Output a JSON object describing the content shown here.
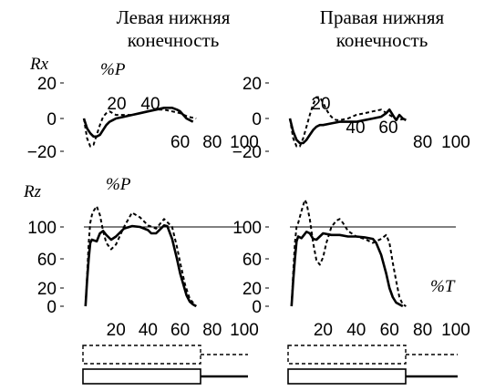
{
  "columns": [
    {
      "title_line1": "Левая нижняя",
      "title_line2": "конечность"
    },
    {
      "title_line1": "Правая нижняя",
      "title_line2": "конечность"
    }
  ],
  "row_labels": {
    "rx": "Rx",
    "rz": "Rz"
  },
  "axis_labels": {
    "percent_p": "%P",
    "percent_t": "%T"
  },
  "colors": {
    "ink": "#000000",
    "background": "#ffffff"
  },
  "chart_data": [
    {
      "id": "rx-left",
      "type": "line",
      "ylabel": "%P",
      "xlim": [
        0,
        100
      ],
      "ylim": [
        -20,
        20
      ],
      "xticks": [
        20,
        40,
        60,
        80,
        100
      ],
      "yticks": [
        -20,
        0,
        20
      ],
      "series": [
        {
          "style": "solid",
          "x": [
            0,
            2,
            4,
            6,
            8,
            10,
            12,
            14,
            16,
            18,
            20,
            25,
            30,
            35,
            40,
            45,
            50,
            55,
            58,
            60,
            62,
            64,
            66,
            68
          ],
          "y": [
            0,
            -6,
            -9,
            -11,
            -11,
            -10,
            -7,
            -4,
            -2,
            -1,
            0,
            1,
            2,
            3,
            4,
            5,
            6,
            6,
            5,
            4,
            2,
            0,
            -1,
            -2
          ]
        },
        {
          "style": "dashed",
          "x": [
            0,
            2,
            4,
            6,
            8,
            10,
            12,
            14,
            16,
            18,
            20,
            25,
            30,
            35,
            40,
            45,
            50,
            55,
            60,
            65,
            70
          ],
          "y": [
            0,
            -12,
            -17,
            -16,
            -10,
            -4,
            1,
            3,
            4,
            3,
            2,
            2,
            2,
            3,
            4,
            5,
            5,
            4,
            3,
            1,
            0
          ]
        }
      ]
    },
    {
      "id": "rx-right",
      "type": "line",
      "xlim": [
        0,
        100
      ],
      "ylim": [
        -20,
        20
      ],
      "xticks": [
        20,
        40,
        60,
        80,
        100
      ],
      "yticks": [
        -20,
        0,
        20
      ],
      "series": [
        {
          "style": "solid",
          "x": [
            0,
            2,
            4,
            6,
            8,
            10,
            12,
            14,
            16,
            18,
            20,
            25,
            30,
            35,
            40,
            45,
            50,
            55,
            58,
            60,
            62,
            64,
            66,
            68,
            70
          ],
          "y": [
            0,
            -8,
            -13,
            -15,
            -15,
            -13,
            -10,
            -7,
            -5,
            -4,
            -4,
            -3,
            -2,
            -2,
            -2,
            -1,
            0,
            1,
            3,
            5,
            2,
            -1,
            2,
            0,
            -1
          ]
        },
        {
          "style": "dashed",
          "x": [
            0,
            2,
            4,
            6,
            8,
            10,
            12,
            14,
            16,
            18,
            20,
            22,
            24,
            26,
            28,
            30,
            35,
            40,
            45,
            50,
            55,
            60,
            65,
            70
          ],
          "y": [
            0,
            -12,
            -17,
            -17,
            -12,
            -5,
            2,
            8,
            12,
            12,
            9,
            5,
            2,
            0,
            -1,
            -1,
            0,
            2,
            3,
            4,
            5,
            2,
            -1,
            0
          ]
        }
      ]
    },
    {
      "id": "rz-left",
      "type": "line",
      "ylabel": "%P",
      "xlim": [
        0,
        100
      ],
      "ylim": [
        0,
        140
      ],
      "xticks": [
        20,
        40,
        60,
        80,
        100
      ],
      "yticks": [
        0,
        20,
        60,
        100
      ],
      "reference_line": 100,
      "series": [
        {
          "style": "solid",
          "x": [
            1,
            2,
            3,
            4,
            5,
            8,
            10,
            12,
            14,
            17,
            20,
            25,
            30,
            35,
            40,
            42,
            45,
            50,
            52,
            55,
            58,
            60,
            62,
            64,
            66,
            68,
            70
          ],
          "y": [
            0,
            30,
            60,
            80,
            84,
            82,
            92,
            95,
            90,
            84,
            88,
            98,
            101,
            100,
            96,
            92,
            92,
            102,
            101,
            85,
            60,
            40,
            25,
            12,
            5,
            2,
            0
          ]
        },
        {
          "style": "dashed",
          "x": [
            1,
            2,
            3,
            4,
            5,
            6,
            8,
            10,
            12,
            14,
            17,
            20,
            25,
            30,
            35,
            40,
            45,
            50,
            55,
            58,
            60,
            63,
            66,
            70
          ],
          "y": [
            0,
            35,
            80,
            105,
            115,
            120,
            126,
            115,
            95,
            80,
            72,
            78,
            100,
            118,
            112,
            102,
            98,
            110,
            100,
            75,
            55,
            25,
            8,
            0
          ]
        }
      ]
    },
    {
      "id": "rz-right",
      "type": "line",
      "xlim": [
        0,
        100
      ],
      "ylim": [
        0,
        140
      ],
      "xticks": [
        20,
        40,
        60,
        80,
        100
      ],
      "yticks": [
        0,
        20,
        60,
        100
      ],
      "reference_line": 100,
      "series": [
        {
          "style": "solid",
          "x": [
            1,
            2,
            3,
            4,
            5,
            7,
            10,
            12,
            14,
            16,
            20,
            25,
            30,
            35,
            40,
            45,
            50,
            52,
            55,
            58,
            60,
            62,
            64,
            66,
            68
          ],
          "y": [
            0,
            30,
            60,
            82,
            88,
            86,
            94,
            92,
            85,
            84,
            92,
            90,
            90,
            88,
            88,
            87,
            85,
            80,
            65,
            40,
            20,
            10,
            4,
            2,
            0
          ]
        },
        {
          "style": "dashed",
          "x": [
            1,
            2,
            3,
            4,
            5,
            7,
            9,
            10,
            12,
            14,
            16,
            18,
            20,
            22,
            25,
            28,
            30,
            32,
            35,
            40,
            45,
            50,
            55,
            58,
            60,
            62,
            64,
            66,
            68,
            70
          ],
          "y": [
            0,
            40,
            80,
            100,
            105,
            120,
            134,
            130,
            110,
            80,
            58,
            52,
            62,
            80,
            100,
            108,
            110,
            105,
            95,
            88,
            85,
            80,
            85,
            90,
            80,
            55,
            30,
            10,
            2,
            0
          ]
        }
      ]
    }
  ]
}
